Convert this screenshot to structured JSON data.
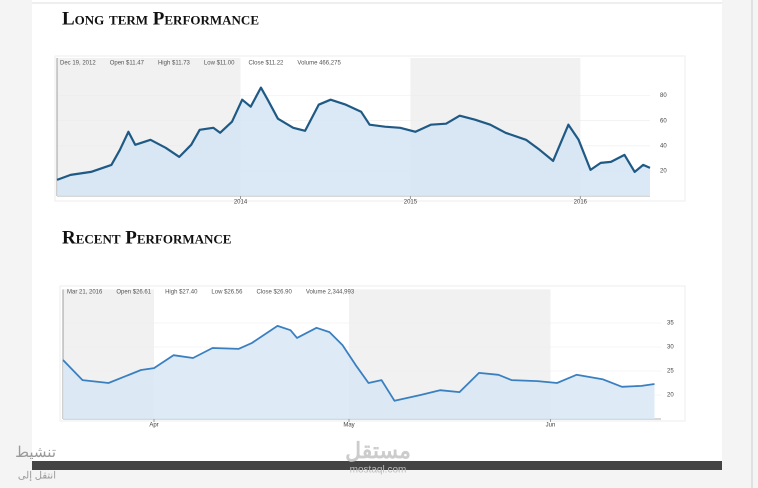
{
  "chart_data": [
    {
      "type": "line",
      "title": "Long term Performance",
      "info": [
        "Dec 19, 2012",
        "Open $11.47",
        "High $11.73",
        "Low $11.00",
        "Close $11.22",
        "Volume 466,275"
      ],
      "x": [
        2012.92,
        2013.0,
        2013.12,
        2013.24,
        2013.29,
        2013.34,
        2013.38,
        2013.47,
        2013.56,
        2013.64,
        2013.71,
        2013.76,
        2013.84,
        2013.88,
        2013.95,
        2014.01,
        2014.06,
        2014.12,
        2014.16,
        2014.22,
        2014.31,
        2014.38,
        2014.46,
        2014.53,
        2014.62,
        2014.71,
        2014.76,
        2014.85,
        2014.94,
        2015.03,
        2015.12,
        2015.21,
        2015.29,
        2015.38,
        2015.47,
        2015.56,
        2015.68,
        2015.76,
        2015.84,
        2015.88,
        2015.93,
        2015.99,
        2016.06,
        2016.12,
        2016.18,
        2016.26,
        2016.32,
        2016.37,
        2016.41
      ],
      "values": [
        12.8,
        16.8,
        19.2,
        24.8,
        36.8,
        51.2,
        40.8,
        44.8,
        38.4,
        31.2,
        40.8,
        52.8,
        54.4,
        50.4,
        59.2,
        76.8,
        71.2,
        86.4,
        76.8,
        61.6,
        54.4,
        52,
        72.8,
        76.8,
        72.8,
        67.2,
        56.8,
        55.2,
        54.4,
        51.2,
        56.8,
        57.6,
        64,
        60.8,
        56.8,
        50.4,
        44.8,
        36.8,
        28,
        40.8,
        56.8,
        44.8,
        20.8,
        26.4,
        27.2,
        32.8,
        19.2,
        24.8,
        22.4
      ],
      "color": "#1f5a85",
      "fill": "#d5e5f4",
      "xlim": [
        2012.92,
        2016.41
      ],
      "xticks": [
        2014,
        2015,
        2016
      ],
      "ylim": [
        0,
        110
      ],
      "yticks": [
        20,
        40,
        60,
        80
      ],
      "grid": true
    },
    {
      "type": "line",
      "title": "Recent Performance",
      "info": [
        "Mar 21, 2016",
        "Open $26.61",
        "High $27.40",
        "Low $26.56",
        "Close $26.90",
        "Volume 2,344,993"
      ],
      "x": [
        0,
        3,
        7,
        12,
        14,
        17,
        20,
        23,
        27,
        29,
        33,
        35,
        36,
        39,
        41,
        43,
        45,
        47,
        49,
        51,
        55,
        58,
        61,
        64,
        67,
        69,
        73,
        76,
        79,
        83,
        86,
        89,
        91
      ],
      "values": [
        27.3,
        23.1,
        22.5,
        25.2,
        25.6,
        28.3,
        27.7,
        29.8,
        29.6,
        30.8,
        34.4,
        33.5,
        31.9,
        34.0,
        33.1,
        30.4,
        26.3,
        22.5,
        23.1,
        18.8,
        20,
        21,
        20.6,
        24.6,
        24.2,
        23.1,
        22.9,
        22.5,
        24.2,
        23.3,
        21.7,
        21.9,
        22.3
      ],
      "color": "#3a80c0",
      "fill": "#d8e7f6",
      "xlim": [
        0,
        92
      ],
      "xticks": [
        {
          "value": 14,
          "label": "Apr"
        },
        {
          "value": 44,
          "label": "May"
        },
        {
          "value": 75,
          "label": "Jun"
        }
      ],
      "ylim": [
        15,
        42
      ],
      "yticks": [
        20,
        25,
        30,
        35
      ],
      "grid": true
    }
  ],
  "overlay": {
    "watermark": "مستقل",
    "watermark_url": "mostaql.com",
    "activate": "تنشيط",
    "goto": "انتقل إلى"
  }
}
